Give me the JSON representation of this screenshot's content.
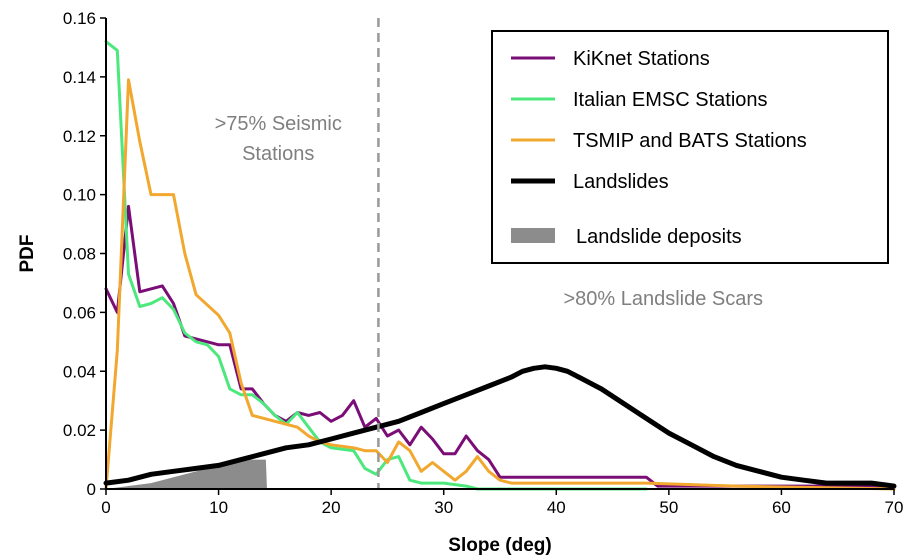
{
  "chart_data": {
    "type": "line",
    "xlabel": "Slope (deg)",
    "ylabel": "PDF",
    "xlim": [
      0,
      70
    ],
    "ylim": [
      0,
      0.16
    ],
    "x_ticks": [
      "0",
      "10",
      "20",
      "30",
      "40",
      "50",
      "60",
      "70"
    ],
    "y_ticks": [
      "0",
      "0.02",
      "0.04",
      "0.06",
      "0.08",
      "0.10",
      "0.12",
      "0.14",
      "0.16"
    ],
    "grid": false,
    "legend_position": "top-right",
    "threshold_line": {
      "x": 24.2,
      "style": "dashed",
      "color": "#999999"
    },
    "annotations": [
      {
        "lines": [
          ">75% Seismic",
          "Stations"
        ],
        "x": 15.3,
        "y": 0.122
      },
      {
        "lines": [
          ">80% Landslide Scars"
        ],
        "x": 49.5,
        "y": 0.0625
      }
    ],
    "legend": [
      {
        "label": "KiKnet Stations",
        "color": "#7b0d77",
        "kind": "line"
      },
      {
        "label": "Italian EMSC Stations",
        "color": "#4de87d",
        "kind": "line"
      },
      {
        "label": "TSMIP and BATS Stations",
        "color": "#f2a72e",
        "kind": "line"
      },
      {
        "label": "Landslides",
        "color": "#000000",
        "kind": "thick-line"
      },
      {
        "label": "Landslide deposits",
        "color": "#8c8c8c",
        "kind": "patch"
      }
    ],
    "series": [
      {
        "name": "KiKnet Stations",
        "color": "#7b0d77",
        "width": 3,
        "points": [
          [
            0,
            0.068
          ],
          [
            1,
            0.06
          ],
          [
            2,
            0.096
          ],
          [
            3,
            0.067
          ],
          [
            5,
            0.069
          ],
          [
            6,
            0.063
          ],
          [
            7,
            0.052
          ],
          [
            8,
            0.051
          ],
          [
            9,
            0.05
          ],
          [
            10,
            0.049
          ],
          [
            11,
            0.049
          ],
          [
            12,
            0.034
          ],
          [
            13,
            0.034
          ],
          [
            14,
            0.029
          ],
          [
            15,
            0.025
          ],
          [
            16,
            0.023
          ],
          [
            17,
            0.026
          ],
          [
            18,
            0.025
          ],
          [
            19,
            0.026
          ],
          [
            20,
            0.023
          ],
          [
            21,
            0.025
          ],
          [
            22,
            0.03
          ],
          [
            23,
            0.021
          ],
          [
            24,
            0.024
          ],
          [
            25,
            0.018
          ],
          [
            26,
            0.02
          ],
          [
            27,
            0.015
          ],
          [
            28,
            0.021
          ],
          [
            29,
            0.017
          ],
          [
            30,
            0.012
          ],
          [
            31,
            0.012
          ],
          [
            32,
            0.018
          ],
          [
            33,
            0.013
          ],
          [
            34,
            0.01
          ],
          [
            35,
            0.004
          ],
          [
            48,
            0.004
          ],
          [
            49,
            0.001
          ],
          [
            70,
            0.001
          ]
        ]
      },
      {
        "name": "Italian EMSC Stations",
        "color": "#4de87d",
        "width": 3,
        "points": [
          [
            0,
            0.152
          ],
          [
            1,
            0.149
          ],
          [
            2,
            0.073
          ],
          [
            3,
            0.062
          ],
          [
            4,
            0.063
          ],
          [
            5,
            0.065
          ],
          [
            6,
            0.061
          ],
          [
            7,
            0.053
          ],
          [
            8,
            0.05
          ],
          [
            9,
            0.049
          ],
          [
            10,
            0.045
          ],
          [
            11,
            0.034
          ],
          [
            12,
            0.032
          ],
          [
            13,
            0.032
          ],
          [
            14,
            0.029
          ],
          [
            15,
            0.025
          ],
          [
            16,
            0.022
          ],
          [
            17,
            0.026
          ],
          [
            18,
            0.021
          ],
          [
            19,
            0.016
          ],
          [
            20,
            0.014
          ],
          [
            22,
            0.013
          ],
          [
            23,
            0.007
          ],
          [
            24,
            0.005
          ],
          [
            25,
            0.01
          ],
          [
            26,
            0.011
          ],
          [
            27,
            0.003
          ],
          [
            28,
            0.002
          ],
          [
            30,
            0.002
          ],
          [
            32,
            0.001
          ],
          [
            33,
            0.0
          ],
          [
            48,
            0.0
          ]
        ]
      },
      {
        "name": "TSMIP and BATS Stations",
        "color": "#f2a72e",
        "width": 3,
        "points": [
          [
            0,
            0.0
          ],
          [
            1,
            0.047
          ],
          [
            2,
            0.139
          ],
          [
            3,
            0.118
          ],
          [
            4,
            0.1
          ],
          [
            5,
            0.1
          ],
          [
            6,
            0.1
          ],
          [
            7,
            0.08
          ],
          [
            8,
            0.066
          ],
          [
            10,
            0.059
          ],
          [
            11,
            0.053
          ],
          [
            12,
            0.036
          ],
          [
            13,
            0.025
          ],
          [
            15,
            0.023
          ],
          [
            17,
            0.021
          ],
          [
            18,
            0.018
          ],
          [
            19,
            0.016
          ],
          [
            20,
            0.015
          ],
          [
            22,
            0.014
          ],
          [
            23,
            0.013
          ],
          [
            24,
            0.013
          ],
          [
            25,
            0.009
          ],
          [
            26,
            0.016
          ],
          [
            27,
            0.013
          ],
          [
            28,
            0.006
          ],
          [
            29,
            0.009
          ],
          [
            30,
            0.006
          ],
          [
            31,
            0.003
          ],
          [
            32,
            0.006
          ],
          [
            33,
            0.011
          ],
          [
            34,
            0.006
          ],
          [
            35,
            0.003
          ],
          [
            36,
            0.002
          ],
          [
            48,
            0.002
          ],
          [
            56,
            0.001
          ],
          [
            70,
            0.0
          ]
        ]
      },
      {
        "name": "Landslides",
        "color": "#000000",
        "width": 5,
        "points": [
          [
            0,
            0.002
          ],
          [
            2,
            0.003
          ],
          [
            4,
            0.005
          ],
          [
            6,
            0.006
          ],
          [
            8,
            0.007
          ],
          [
            10,
            0.008
          ],
          [
            12,
            0.01
          ],
          [
            14,
            0.012
          ],
          [
            16,
            0.014
          ],
          [
            18,
            0.015
          ],
          [
            20,
            0.017
          ],
          [
            22,
            0.019
          ],
          [
            24,
            0.021
          ],
          [
            26,
            0.023
          ],
          [
            28,
            0.026
          ],
          [
            30,
            0.029
          ],
          [
            32,
            0.032
          ],
          [
            34,
            0.035
          ],
          [
            36,
            0.038
          ],
          [
            37,
            0.04
          ],
          [
            38,
            0.041
          ],
          [
            39,
            0.0415
          ],
          [
            40,
            0.041
          ],
          [
            41,
            0.04
          ],
          [
            42,
            0.038
          ],
          [
            44,
            0.034
          ],
          [
            46,
            0.029
          ],
          [
            48,
            0.024
          ],
          [
            50,
            0.019
          ],
          [
            52,
            0.015
          ],
          [
            54,
            0.011
          ],
          [
            56,
            0.008
          ],
          [
            58,
            0.006
          ],
          [
            60,
            0.004
          ],
          [
            62,
            0.003
          ],
          [
            64,
            0.002
          ],
          [
            66,
            0.002
          ],
          [
            68,
            0.002
          ],
          [
            70,
            0.001
          ]
        ]
      }
    ],
    "deposits_area": {
      "name": "Landslide deposits",
      "color": "#8c8c8c",
      "points": [
        [
          0,
          0.0
        ],
        [
          2,
          0.001
        ],
        [
          4,
          0.002
        ],
        [
          6,
          0.004
        ],
        [
          8,
          0.006
        ],
        [
          10,
          0.008
        ],
        [
          12,
          0.01
        ],
        [
          14,
          0.01
        ],
        [
          14.2,
          0.01
        ],
        [
          14.3,
          0.0
        ]
      ]
    }
  }
}
